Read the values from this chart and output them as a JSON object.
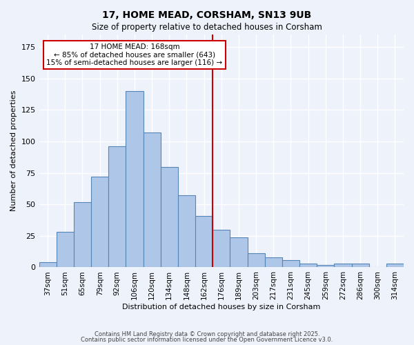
{
  "title1": "17, HOME MEAD, CORSHAM, SN13 9UB",
  "title2": "Size of property relative to detached houses in Corsham",
  "xlabel": "Distribution of detached houses by size in Corsham",
  "ylabel": "Number of detached properties",
  "categories": [
    "37sqm",
    "51sqm",
    "65sqm",
    "79sqm",
    "92sqm",
    "106sqm",
    "120sqm",
    "134sqm",
    "148sqm",
    "162sqm",
    "176sqm",
    "189sqm",
    "203sqm",
    "217sqm",
    "231sqm",
    "245sqm",
    "259sqm",
    "272sqm",
    "286sqm",
    "300sqm",
    "314sqm"
  ],
  "values": [
    4,
    28,
    52,
    72,
    96,
    140,
    107,
    80,
    57,
    41,
    30,
    24,
    11,
    8,
    6,
    3,
    2,
    3,
    3,
    0,
    3
  ],
  "bar_color": "#aec6e8",
  "bar_edge_color": "#5585b5",
  "background_color": "#eef2fb",
  "grid_color": "#ffffff",
  "red_line_x": 9.5,
  "annotation_line1": "17 HOME MEAD: 168sqm",
  "annotation_line2": "← 85% of detached houses are smaller (643)",
  "annotation_line3": "15% of semi-detached houses are larger (116) →",
  "annotation_box_color": "#ffffff",
  "annotation_box_edge_color": "#cc0000",
  "ylim": [
    0,
    185
  ],
  "footer1": "Contains HM Land Registry data © Crown copyright and database right 2025.",
  "footer2": "Contains public sector information licensed under the Open Government Licence v3.0."
}
